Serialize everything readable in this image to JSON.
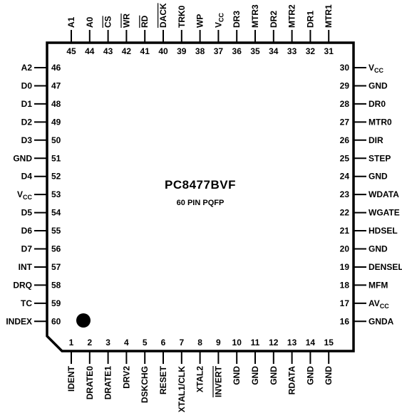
{
  "chip": {
    "part": "PC8477BVF",
    "package": "60 PIN PQFP"
  },
  "pins": {
    "top": [
      {
        "num": "45",
        "label": "A1"
      },
      {
        "num": "44",
        "label": "A0"
      },
      {
        "num": "43",
        "label": "CS",
        "bar": true
      },
      {
        "num": "42",
        "label": "WR",
        "bar": true
      },
      {
        "num": "41",
        "label": "RD",
        "bar": true
      },
      {
        "num": "40",
        "label": "DACK",
        "bar": true
      },
      {
        "num": "39",
        "label": "TRK0"
      },
      {
        "num": "38",
        "label": "WP"
      },
      {
        "num": "37",
        "label": "V",
        "sub": "CC"
      },
      {
        "num": "36",
        "label": "DR3"
      },
      {
        "num": "35",
        "label": "MTR3"
      },
      {
        "num": "34",
        "label": "DR2"
      },
      {
        "num": "33",
        "label": "MTR2"
      },
      {
        "num": "32",
        "label": "DR1"
      },
      {
        "num": "31",
        "label": "MTR1"
      }
    ],
    "left": [
      {
        "num": "46",
        "label": "A2"
      },
      {
        "num": "47",
        "label": "D0"
      },
      {
        "num": "48",
        "label": "D1"
      },
      {
        "num": "49",
        "label": "D2"
      },
      {
        "num": "50",
        "label": "D3"
      },
      {
        "num": "51",
        "label": "GND"
      },
      {
        "num": "52",
        "label": "D4"
      },
      {
        "num": "53",
        "label": "V",
        "sub": "CC"
      },
      {
        "num": "54",
        "label": "D5"
      },
      {
        "num": "55",
        "label": "D6"
      },
      {
        "num": "56",
        "label": "D7"
      },
      {
        "num": "57",
        "label": "INT"
      },
      {
        "num": "58",
        "label": "DRQ"
      },
      {
        "num": "59",
        "label": "TC"
      },
      {
        "num": "60",
        "label": "INDEX"
      }
    ],
    "right": [
      {
        "num": "30",
        "label": "V",
        "sub": "CC"
      },
      {
        "num": "29",
        "label": "GND"
      },
      {
        "num": "28",
        "label": "DR0"
      },
      {
        "num": "27",
        "label": "MTR0"
      },
      {
        "num": "26",
        "label": "DIR"
      },
      {
        "num": "25",
        "label": "STEP"
      },
      {
        "num": "24",
        "label": "GND"
      },
      {
        "num": "23",
        "label": "WDATA"
      },
      {
        "num": "22",
        "label": "WGATE"
      },
      {
        "num": "21",
        "label": "HDSEL"
      },
      {
        "num": "20",
        "label": "GND"
      },
      {
        "num": "19",
        "label": "DENSEL"
      },
      {
        "num": "18",
        "label": "MFM"
      },
      {
        "num": "17",
        "label": "AV",
        "sub": "CC"
      },
      {
        "num": "16",
        "label": "GNDA"
      }
    ],
    "bottom": [
      {
        "num": "1",
        "label": "IDENT"
      },
      {
        "num": "2",
        "label": "DRATE0"
      },
      {
        "num": "3",
        "label": "DRATE1"
      },
      {
        "num": "4",
        "label": "DRV2"
      },
      {
        "num": "5",
        "label": "DSKCHG"
      },
      {
        "num": "6",
        "label": "RESET"
      },
      {
        "num": "7",
        "label": "XTAL1/CLK"
      },
      {
        "num": "8",
        "label": "XTAL2"
      },
      {
        "num": "9",
        "label": "INVERT",
        "bar": true
      },
      {
        "num": "10",
        "label": "GND"
      },
      {
        "num": "11",
        "label": "GND"
      },
      {
        "num": "12",
        "label": "GND"
      },
      {
        "num": "13",
        "label": "RDATA"
      },
      {
        "num": "14",
        "label": "GND"
      },
      {
        "num": "15",
        "label": "GND"
      }
    ]
  }
}
